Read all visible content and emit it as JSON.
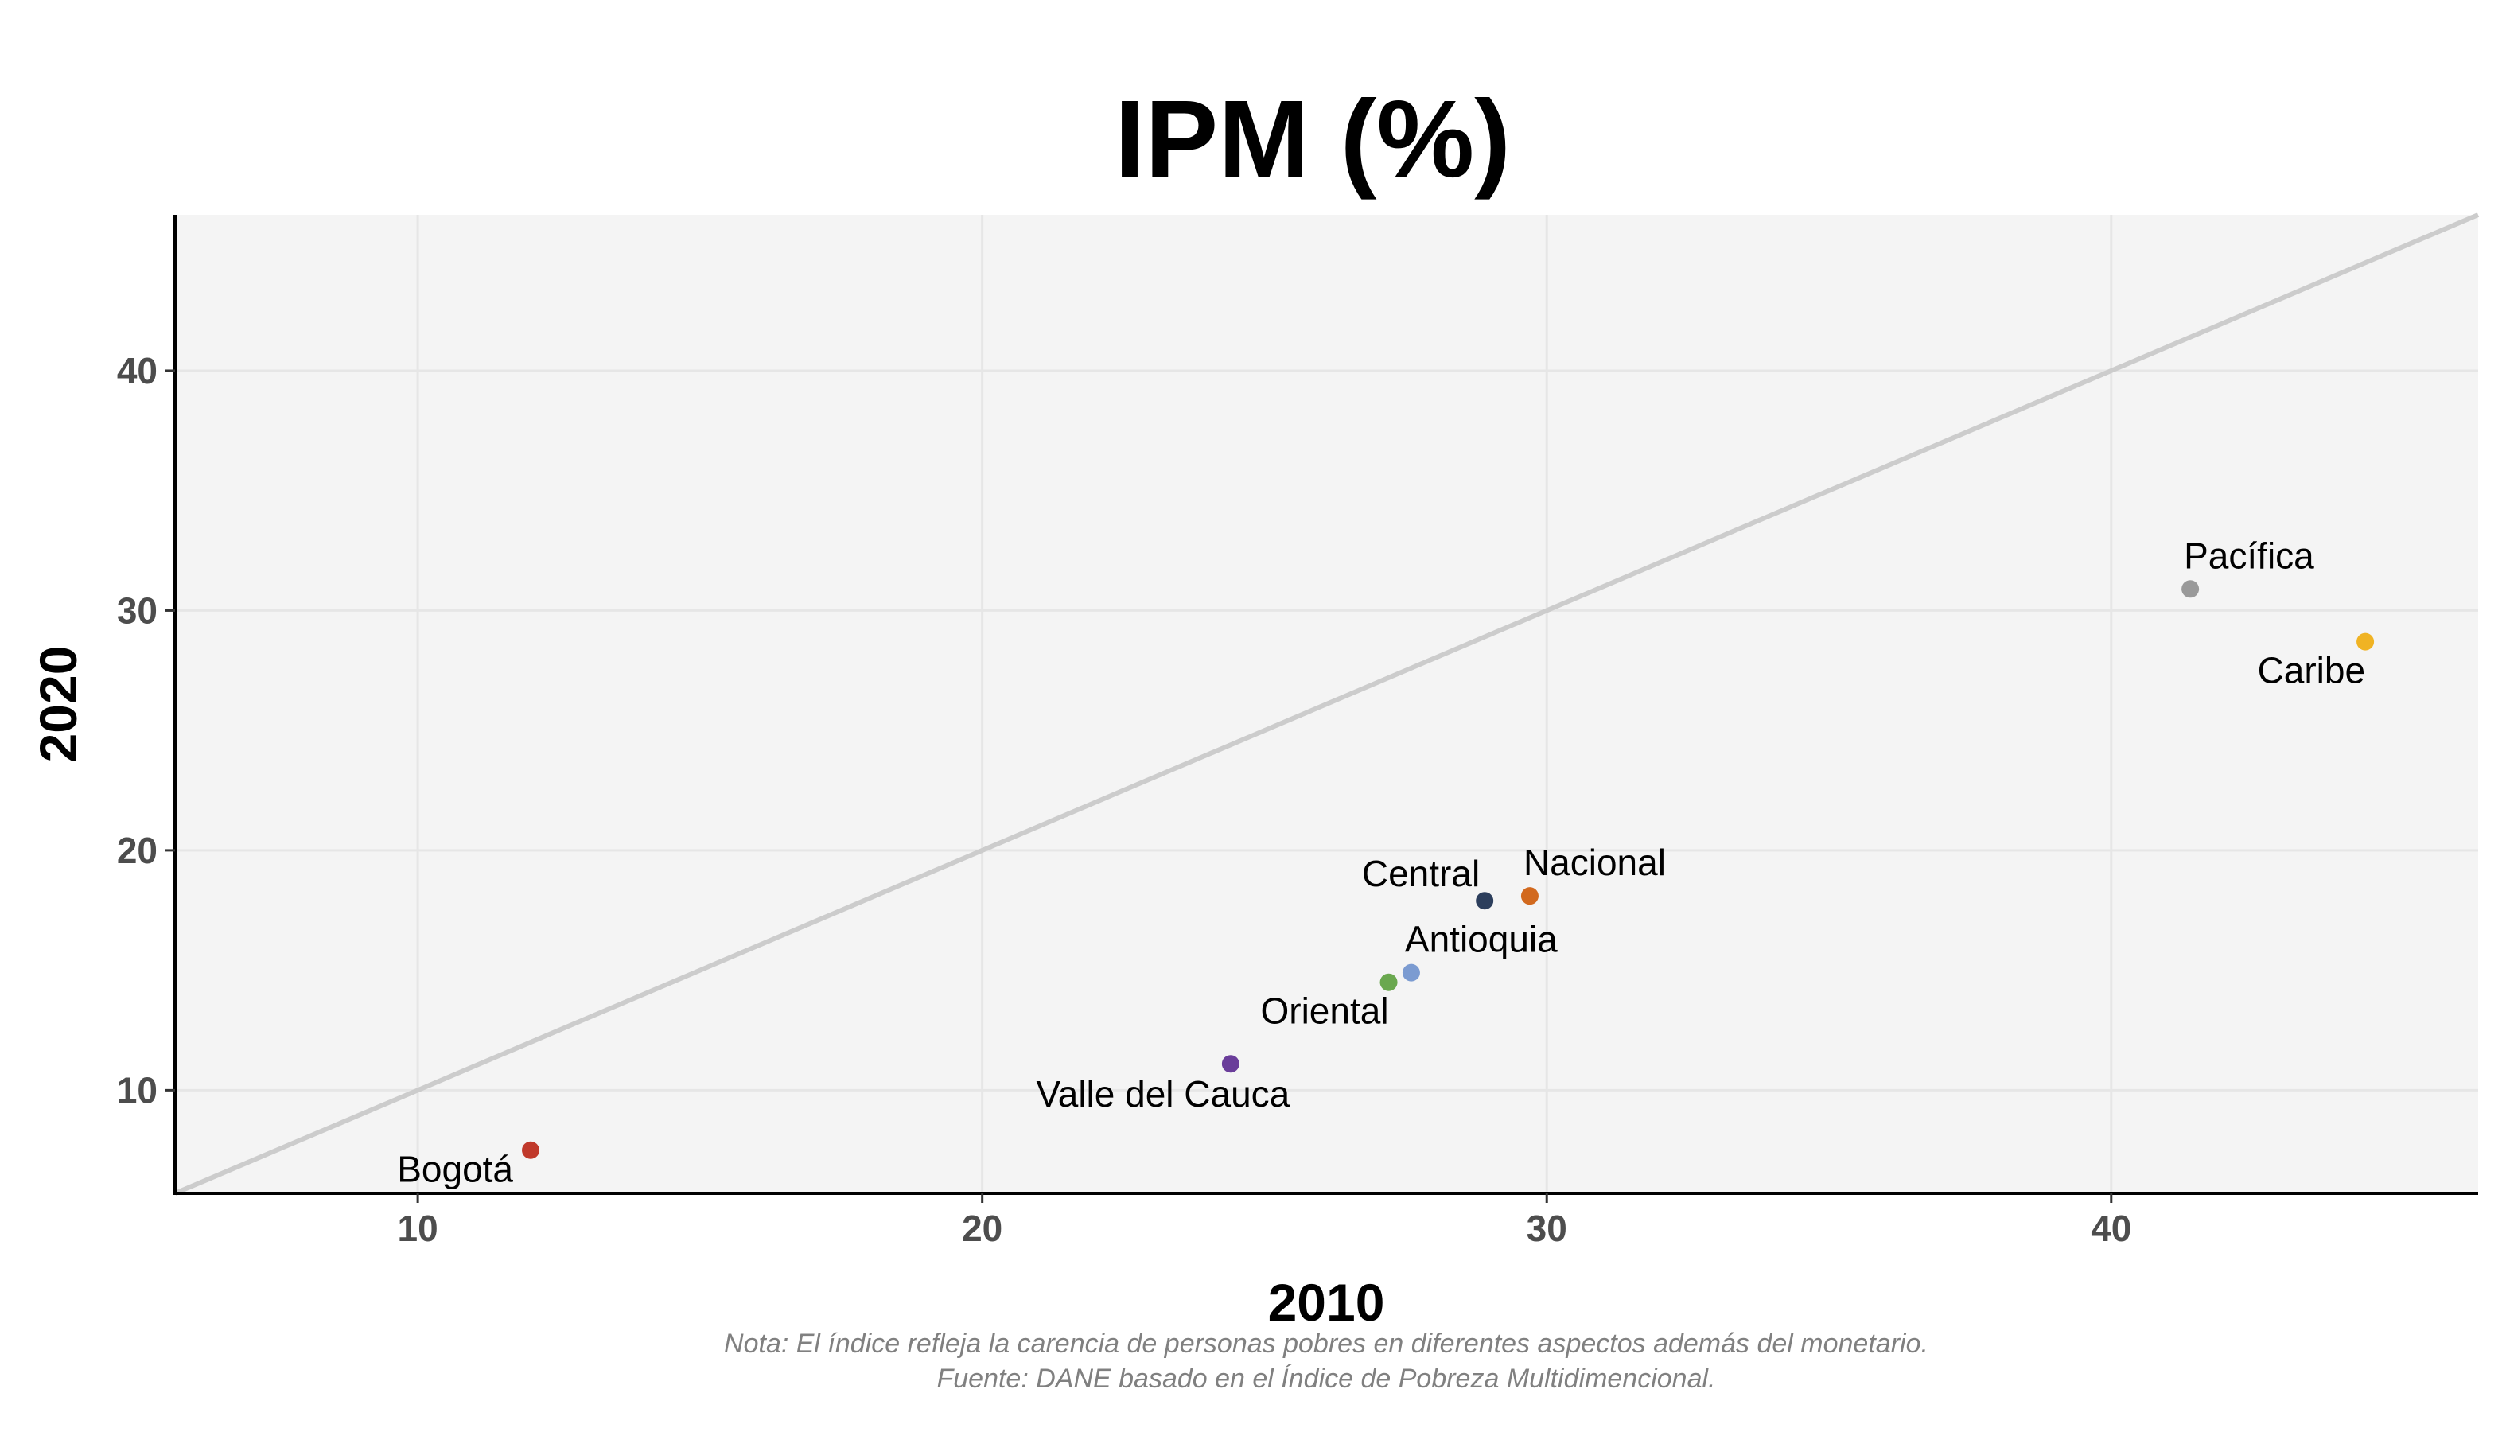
{
  "chart_data": {
    "type": "scatter",
    "title": "IPM (%)",
    "xlabel": "2010",
    "ylabel": "2020",
    "xlim": [
      5.7,
      46.5
    ],
    "ylim": [
      5.7,
      46.5
    ],
    "xticks": [
      10,
      20,
      30,
      40
    ],
    "yticks": [
      10,
      20,
      30,
      40
    ],
    "grid": true,
    "reference_line": "y = x",
    "points": [
      {
        "label": "Bogotá",
        "x": 12.0,
        "y": 7.5,
        "color": "#c0392b",
        "anchor": "left"
      },
      {
        "label": "Valle del Cauca",
        "x": 24.4,
        "y": 11.1,
        "color": "#6a3d9a",
        "anchor": "below"
      },
      {
        "label": "Oriental",
        "x": 27.2,
        "y": 14.5,
        "color": "#6aa84f",
        "anchor": "below-left"
      },
      {
        "label": "Antioquia",
        "x": 27.6,
        "y": 14.9,
        "color": "#7b9bd1",
        "anchor": "above-right"
      },
      {
        "label": "Central",
        "x": 28.9,
        "y": 17.9,
        "color": "#2c3e5c",
        "anchor": "above-left"
      },
      {
        "label": "Nacional",
        "x": 29.7,
        "y": 18.1,
        "color": "#d2691e",
        "anchor": "above-right"
      },
      {
        "label": "Pacífica",
        "x": 41.4,
        "y": 30.9,
        "color": "#999999",
        "anchor": "above-right"
      },
      {
        "label": "Caribe",
        "x": 44.5,
        "y": 28.7,
        "color": "#f0b323",
        "anchor": "below-left"
      }
    ],
    "notes": [
      "Nota: El índice refleja la carencia de personas pobres en diferentes aspectos además del monetario.",
      "Fuente: DANE basado en el Índice de Pobreza Multidimencional."
    ]
  }
}
